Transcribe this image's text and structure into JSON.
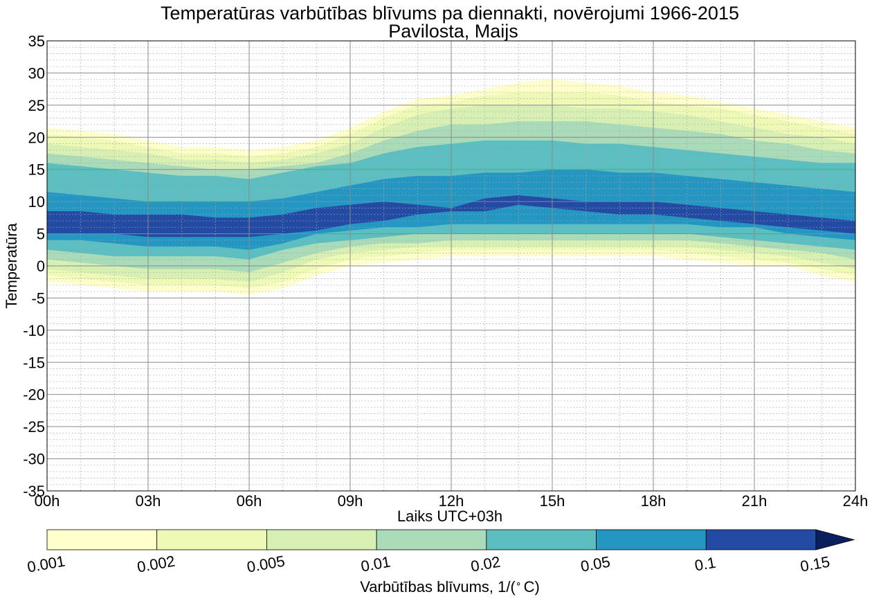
{
  "chart_data": {
    "type": "heatmap",
    "subtype": "filled-contour",
    "title": "Temperatūras varbūtības blīvums pa diennakti, novērojumi 1966-2015",
    "subtitle": "Pavilosta, Maijs",
    "xlabel": "Laiks UTC+03h",
    "ylabel": "Temperatūra",
    "xlim": [
      0,
      24
    ],
    "ylim": [
      -35,
      35
    ],
    "x_ticks": [
      0,
      3,
      6,
      9,
      12,
      15,
      18,
      21,
      24
    ],
    "x_tick_labels": [
      "00h",
      "03h",
      "06h",
      "09h",
      "12h",
      "15h",
      "18h",
      "21h",
      "24h"
    ],
    "y_ticks": [
      -35,
      -30,
      -25,
      -20,
      -15,
      -10,
      -5,
      0,
      5,
      10,
      15,
      20,
      25,
      30,
      35
    ],
    "y_tick_labels": [
      "-35",
      "-30",
      "-25",
      "-20",
      "-15",
      "-10",
      "-5",
      "0",
      "5",
      "10",
      "15",
      "20",
      "25",
      "30",
      "35"
    ],
    "grid": "major solid, minor dotted",
    "colorbar": {
      "label": "Varbūtības blīvums, 1/(°C)",
      "label_prefix": "Varbūtības blīvums, 1/(",
      "label_unit": "∘",
      "label_suffix": "C)",
      "levels": [
        0.001,
        0.002,
        0.005,
        0.01,
        0.02,
        0.05,
        0.1,
        0.15
      ],
      "tick_labels": [
        "0.001",
        "0.002",
        "0.005",
        "0.01",
        "0.02",
        "0.05",
        "0.1",
        "0.15"
      ],
      "colors": [
        "#ffffcc",
        "#eff9b6",
        "#d7efb3",
        "#a9dbb8",
        "#5bbec0",
        "#2396c2",
        "#234ba3"
      ],
      "extend_color": "#0a1f5c",
      "extend": "max"
    },
    "time_points": [
      0,
      1,
      2,
      3,
      4,
      5,
      6,
      7,
      8,
      9,
      10,
      11,
      12,
      13,
      14,
      15,
      16,
      17,
      18,
      19,
      20,
      21,
      22,
      23,
      24
    ],
    "contours": [
      {
        "level": 0.001,
        "upper": [
          21.5,
          21,
          20.5,
          19.5,
          18.5,
          18.5,
          18,
          18.5,
          19.5,
          21.5,
          24,
          26,
          26.5,
          27.5,
          28.5,
          29,
          28.5,
          28,
          27,
          26.5,
          25.5,
          24.5,
          23.5,
          22.5,
          21.5
        ],
        "lower": [
          -2.5,
          -3,
          -3.5,
          -4,
          -4,
          -4,
          -4.5,
          -3.5,
          -1.5,
          0,
          0.5,
          1,
          1.5,
          1.5,
          1.5,
          1.5,
          1.5,
          1.5,
          1.5,
          1,
          0.5,
          0,
          0,
          -1.5,
          -2.5
        ]
      },
      {
        "level": 0.002,
        "upper": [
          20.5,
          20,
          19.5,
          18.5,
          17.5,
          17.5,
          17,
          17.5,
          18.5,
          20.5,
          23,
          25,
          25.5,
          26.5,
          27,
          27,
          27,
          26.5,
          25.5,
          25,
          24.5,
          23.5,
          22.5,
          21.5,
          20.5
        ],
        "lower": [
          -1.5,
          -2,
          -2.5,
          -3,
          -3,
          -3,
          -3.5,
          -2.5,
          -0.5,
          1,
          1.5,
          2,
          2.5,
          2.5,
          2.5,
          2.5,
          2.5,
          2.5,
          2.5,
          2,
          1.5,
          1,
          0.5,
          -0.5,
          -1.5
        ]
      },
      {
        "level": 0.005,
        "upper": [
          19,
          18.5,
          18,
          17.5,
          16.5,
          16.5,
          16,
          16.5,
          17.5,
          19,
          21.5,
          23.5,
          24.5,
          25,
          25,
          25,
          24.5,
          24.5,
          24,
          23.5,
          22.5,
          21.5,
          20.5,
          20,
          19
        ],
        "lower": [
          -0.5,
          -1,
          -1.5,
          -2,
          -2,
          -2,
          -2.5,
          -1,
          1,
          2,
          2.5,
          3,
          3,
          3,
          3,
          3,
          3,
          3,
          3,
          3,
          2.5,
          2,
          1.5,
          0.5,
          -0.5
        ]
      },
      {
        "level": 0.01,
        "upper": [
          17.5,
          17,
          16.5,
          16,
          15.5,
          15,
          15,
          15.5,
          16,
          17.5,
          19.5,
          21,
          22,
          22,
          22.5,
          22.5,
          22.5,
          22,
          21.5,
          21,
          20.5,
          19.5,
          19,
          18,
          17.5
        ],
        "lower": [
          1,
          0.5,
          0,
          -0.5,
          -0.5,
          -0.5,
          -1,
          0.5,
          2,
          3,
          3.5,
          3.5,
          4,
          4,
          4,
          4,
          4,
          4,
          4,
          4,
          3.5,
          3,
          2.5,
          2,
          1
        ]
      },
      {
        "level": 0.02,
        "upper": [
          16,
          15.5,
          15,
          14.5,
          14,
          14,
          13.5,
          14.5,
          15.5,
          16,
          17.5,
          18.5,
          19,
          19.5,
          19.5,
          19.5,
          19,
          19,
          18.5,
          18,
          17.5,
          17,
          16.5,
          16,
          16
        ],
        "lower": [
          2.5,
          2,
          1.5,
          1.5,
          1.5,
          1.5,
          1,
          2.5,
          3.5,
          4,
          4.5,
          5,
          5,
          5,
          5,
          5,
          5,
          5,
          5,
          5,
          4.5,
          4,
          3.5,
          3,
          2.5
        ]
      },
      {
        "level": 0.05,
        "upper": [
          11.5,
          11,
          10.5,
          10,
          10,
          10,
          10,
          10.5,
          11.5,
          12.5,
          13.5,
          14,
          14,
          14.5,
          14.5,
          15,
          15,
          14.5,
          14.5,
          14,
          13.5,
          13,
          12.5,
          12,
          11.5
        ],
        "lower": [
          4,
          4,
          3.5,
          3,
          3,
          3,
          2.5,
          3.5,
          5,
          5.5,
          6,
          6,
          6.5,
          6.5,
          6.5,
          6.5,
          6.5,
          6.5,
          6.5,
          6.5,
          6,
          6,
          5,
          4.5,
          4
        ]
      },
      {
        "level": 0.1,
        "upper": [
          8.5,
          8.5,
          8,
          8,
          8,
          7.5,
          7.5,
          8,
          9,
          9.5,
          10,
          9.5,
          9,
          10.5,
          11,
          10.5,
          10,
          10,
          10,
          9.5,
          9,
          8.5,
          8,
          7.5,
          7
        ],
        "lower": [
          5,
          5,
          5,
          4.5,
          4.5,
          4.5,
          4.5,
          5,
          5.5,
          6.5,
          7,
          8,
          8.5,
          8.5,
          9.5,
          9,
          8.5,
          8,
          8,
          7.5,
          7,
          6.5,
          6,
          5.5,
          5
        ]
      }
    ]
  }
}
